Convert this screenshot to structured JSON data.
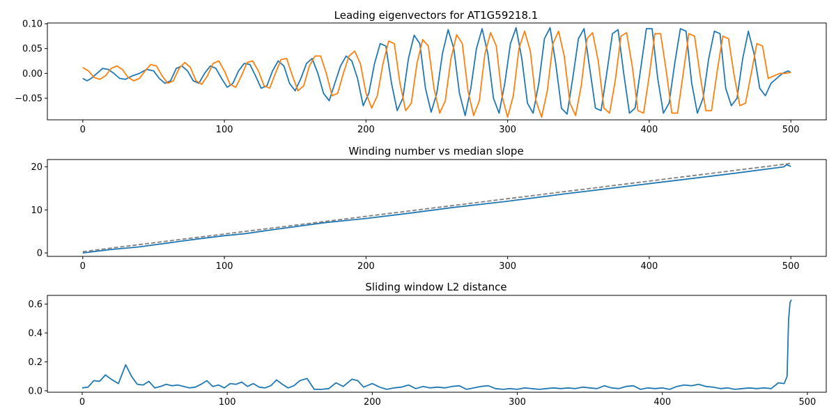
{
  "chart_data": [
    {
      "type": "line",
      "title": "Leading eigenvectors for AT1G59218.1",
      "xlabel": "",
      "ylabel": "",
      "xlim": [
        -25,
        525
      ],
      "ylim": [
        -0.0935,
        0.1015
      ],
      "xticks": [
        0,
        100,
        200,
        300,
        400,
        500
      ],
      "yticks": [
        -0.05,
        0.0,
        0.05,
        0.1
      ],
      "xtick_labels": [
        "0",
        "100",
        "200",
        "300",
        "400",
        "500"
      ],
      "ytick_labels": [
        "−0.05",
        "0.00",
        "0.05",
        "0.10"
      ],
      "grid": false,
      "colors": [
        "#1f77b4",
        "#ff7f0e"
      ],
      "series": [
        {
          "x": [
            0,
            3,
            6,
            10,
            14,
            18,
            22,
            26,
            30,
            35,
            40,
            45,
            50,
            54,
            58,
            62,
            66,
            70,
            74,
            78,
            82,
            86,
            90,
            94,
            98,
            102,
            106,
            110,
            114,
            118,
            122,
            126,
            130,
            134,
            138,
            142,
            146,
            150,
            154,
            158,
            162,
            166,
            170,
            174,
            178,
            182,
            186,
            190,
            194,
            198,
            202,
            206,
            210,
            214,
            218,
            222,
            226,
            230,
            234,
            238,
            242,
            246,
            250,
            254,
            258,
            262,
            266,
            270,
            274,
            278,
            282,
            286,
            290,
            294,
            298,
            302,
            306,
            310,
            314,
            318,
            322,
            326,
            330,
            334,
            338,
            342,
            346,
            350,
            354,
            358,
            362,
            366,
            370,
            374,
            378,
            382,
            386,
            390,
            394,
            398,
            402,
            406,
            410,
            414,
            418,
            422,
            426,
            430,
            434,
            438,
            442,
            446,
            450,
            454,
            458,
            462,
            466,
            470,
            474,
            478,
            482,
            486,
            490,
            494,
            498,
            500
          ],
          "y": [
            -0.01,
            -0.015,
            -0.01,
            0.0,
            0.01,
            0.008,
            0.0,
            -0.01,
            -0.012,
            -0.005,
            0.0,
            0.008,
            0.005,
            -0.01,
            -0.02,
            -0.015,
            0.01,
            0.015,
            0.005,
            -0.015,
            -0.02,
            0.0,
            0.015,
            0.01,
            -0.01,
            -0.028,
            -0.02,
            0.005,
            0.02,
            0.018,
            -0.005,
            -0.03,
            -0.025,
            0.005,
            0.025,
            0.015,
            -0.02,
            -0.035,
            -0.01,
            0.02,
            0.03,
            0.0,
            -0.04,
            -0.055,
            -0.02,
            0.015,
            0.035,
            0.025,
            -0.01,
            -0.065,
            -0.04,
            0.02,
            0.06,
            0.055,
            -0.02,
            -0.075,
            -0.05,
            0.03,
            0.077,
            0.06,
            -0.03,
            -0.078,
            -0.04,
            0.04,
            0.088,
            0.05,
            -0.04,
            -0.085,
            -0.03,
            0.05,
            0.09,
            0.04,
            -0.05,
            -0.08,
            -0.02,
            0.06,
            0.092,
            0.03,
            -0.06,
            -0.08,
            -0.02,
            0.07,
            0.092,
            0.02,
            -0.07,
            -0.082,
            -0.01,
            0.07,
            0.09,
            0.01,
            -0.07,
            -0.075,
            0.0,
            0.08,
            0.088,
            0.0,
            -0.08,
            -0.07,
            0.01,
            0.09,
            0.09,
            -0.01,
            -0.08,
            -0.06,
            0.02,
            0.09,
            0.085,
            -0.02,
            -0.08,
            -0.05,
            0.03,
            0.085,
            0.08,
            -0.03,
            -0.065,
            -0.05,
            0.03,
            0.085,
            0.04,
            -0.03,
            -0.045,
            -0.02,
            -0.01,
            0.0,
            0.005,
            0.002
          ]
        },
        {
          "x": [
            0,
            4,
            8,
            12,
            16,
            20,
            24,
            28,
            32,
            36,
            40,
            44,
            48,
            52,
            56,
            60,
            64,
            68,
            72,
            76,
            80,
            84,
            88,
            92,
            96,
            100,
            104,
            108,
            112,
            116,
            120,
            124,
            128,
            132,
            136,
            140,
            144,
            148,
            152,
            156,
            160,
            164,
            168,
            172,
            176,
            180,
            184,
            188,
            192,
            196,
            200,
            204,
            208,
            212,
            216,
            220,
            224,
            228,
            232,
            236,
            240,
            244,
            248,
            252,
            256,
            260,
            264,
            268,
            272,
            276,
            280,
            284,
            288,
            292,
            296,
            300,
            304,
            308,
            312,
            316,
            320,
            324,
            328,
            332,
            336,
            340,
            344,
            348,
            352,
            356,
            360,
            364,
            368,
            372,
            376,
            380,
            384,
            388,
            392,
            396,
            400,
            404,
            408,
            412,
            416,
            420,
            424,
            428,
            432,
            436,
            440,
            444,
            448,
            452,
            456,
            460,
            464,
            468,
            472,
            476,
            480,
            484,
            488,
            492,
            496,
            500
          ],
          "y": [
            0.012,
            0.005,
            -0.008,
            -0.012,
            -0.005,
            0.01,
            0.015,
            0.008,
            -0.008,
            -0.015,
            -0.01,
            0.005,
            0.018,
            0.015,
            -0.005,
            -0.02,
            -0.015,
            0.01,
            0.022,
            0.012,
            -0.015,
            -0.022,
            -0.005,
            0.02,
            0.025,
            0.005,
            -0.022,
            -0.028,
            -0.005,
            0.022,
            0.025,
            0.005,
            -0.025,
            -0.03,
            0.0,
            0.028,
            0.03,
            -0.005,
            -0.035,
            -0.025,
            0.015,
            0.035,
            0.035,
            0.0,
            -0.045,
            -0.04,
            0.0,
            0.035,
            0.045,
            0.02,
            -0.04,
            -0.07,
            -0.045,
            0.02,
            0.065,
            0.06,
            -0.02,
            -0.075,
            -0.06,
            0.02,
            0.068,
            0.055,
            -0.03,
            -0.08,
            -0.055,
            0.03,
            0.078,
            0.06,
            -0.035,
            -0.085,
            -0.055,
            0.04,
            0.082,
            0.055,
            -0.045,
            -0.088,
            -0.045,
            0.05,
            0.085,
            0.045,
            -0.055,
            -0.088,
            -0.035,
            0.06,
            0.085,
            0.035,
            -0.06,
            -0.085,
            -0.025,
            0.07,
            0.082,
            0.025,
            -0.07,
            -0.08,
            -0.015,
            0.075,
            0.082,
            0.015,
            -0.075,
            -0.08,
            -0.005,
            0.08,
            0.08,
            0.005,
            -0.08,
            -0.08,
            0.0,
            0.08,
            0.075,
            -0.005,
            -0.075,
            -0.075,
            0.005,
            0.075,
            0.07,
            -0.005,
            -0.065,
            -0.06,
            0.0,
            0.06,
            0.055,
            -0.01,
            -0.005,
            0.0,
            0.0,
            0.002
          ]
        }
      ]
    },
    {
      "type": "line",
      "title": "Winding number vs median slope",
      "xlabel": "",
      "ylabel": "",
      "xlim": [
        -25,
        525
      ],
      "ylim": [
        -0.8,
        21.7
      ],
      "xticks": [
        0,
        100,
        200,
        300,
        400,
        500
      ],
      "yticks": [
        0,
        10,
        20
      ],
      "xtick_labels": [
        "0",
        "100",
        "200",
        "300",
        "400",
        "500"
      ],
      "ytick_labels": [
        "0",
        "10",
        "20"
      ],
      "grid": false,
      "colors": [
        "#1f77b4",
        "#808080"
      ],
      "series": [
        {
          "style": "solid",
          "x": [
            0,
            20,
            40,
            60,
            80,
            100,
            115,
            130,
            150,
            170,
            200,
            230,
            260,
            300,
            340,
            380,
            420,
            460,
            495,
            497,
            500
          ],
          "y": [
            0.0,
            0.8,
            1.4,
            2.3,
            3.2,
            4.0,
            4.5,
            5.2,
            6.1,
            7.0,
            8.0,
            9.2,
            10.5,
            12.0,
            13.7,
            15.3,
            16.9,
            18.5,
            20.0,
            20.5,
            20.1
          ]
        },
        {
          "style": "dashed",
          "x": [
            0,
            500
          ],
          "y": [
            0.3,
            20.8
          ]
        }
      ]
    },
    {
      "type": "line",
      "title": "Sliding window L2 distance",
      "xlabel": "",
      "ylabel": "",
      "xlim": [
        -24,
        513
      ],
      "ylim": [
        -0.01,
        0.66
      ],
      "xticks": [
        0,
        100,
        200,
        300,
        400,
        500
      ],
      "yticks": [
        0.0,
        0.2,
        0.4,
        0.6
      ],
      "xtick_labels": [
        "0",
        "100",
        "200",
        "300",
        "400",
        "500"
      ],
      "ytick_labels": [
        "0.0",
        "0.2",
        "0.4",
        "0.6"
      ],
      "grid": false,
      "colors": [
        "#1f77b4"
      ],
      "series": [
        {
          "x": [
            0,
            4,
            8,
            12,
            16,
            20,
            25,
            30,
            34,
            38,
            42,
            46,
            50,
            54,
            58,
            62,
            66,
            70,
            74,
            78,
            82,
            86,
            90,
            94,
            98,
            102,
            106,
            110,
            114,
            118,
            122,
            126,
            130,
            134,
            138,
            142,
            146,
            150,
            155,
            160,
            165,
            170,
            175,
            180,
            186,
            190,
            194,
            200,
            205,
            210,
            215,
            220,
            225,
            230,
            235,
            240,
            245,
            250,
            255,
            260,
            265,
            270,
            275,
            280,
            285,
            290,
            295,
            300,
            305,
            310,
            315,
            320,
            325,
            330,
            335,
            340,
            345,
            350,
            355,
            360,
            365,
            370,
            375,
            380,
            385,
            390,
            395,
            400,
            405,
            410,
            415,
            420,
            425,
            430,
            435,
            440,
            445,
            450,
            455,
            460,
            465,
            470,
            475,
            480,
            484,
            486,
            487,
            488,
            489
          ],
          "y": [
            0.02,
            0.025,
            0.07,
            0.065,
            0.11,
            0.08,
            0.05,
            0.18,
            0.1,
            0.045,
            0.04,
            0.065,
            0.02,
            0.03,
            0.045,
            0.035,
            0.04,
            0.03,
            0.02,
            0.025,
            0.045,
            0.07,
            0.03,
            0.04,
            0.02,
            0.05,
            0.045,
            0.06,
            0.03,
            0.05,
            0.025,
            0.02,
            0.035,
            0.075,
            0.045,
            0.02,
            0.035,
            0.07,
            0.085,
            0.01,
            0.01,
            0.015,
            0.055,
            0.03,
            0.08,
            0.07,
            0.025,
            0.05,
            0.025,
            0.01,
            0.02,
            0.025,
            0.04,
            0.015,
            0.03,
            0.02,
            0.025,
            0.02,
            0.03,
            0.035,
            0.01,
            0.02,
            0.03,
            0.035,
            0.015,
            0.01,
            0.015,
            0.01,
            0.02,
            0.015,
            0.01,
            0.015,
            0.02,
            0.015,
            0.02,
            0.015,
            0.025,
            0.02,
            0.015,
            0.035,
            0.02,
            0.015,
            0.03,
            0.035,
            0.01,
            0.02,
            0.015,
            0.02,
            0.01,
            0.03,
            0.04,
            0.035,
            0.045,
            0.03,
            0.025,
            0.015,
            0.02,
            0.01,
            0.015,
            0.02,
            0.015,
            0.02,
            0.015,
            0.055,
            0.05,
            0.1,
            0.49,
            0.61,
            0.63
          ]
        }
      ]
    }
  ]
}
